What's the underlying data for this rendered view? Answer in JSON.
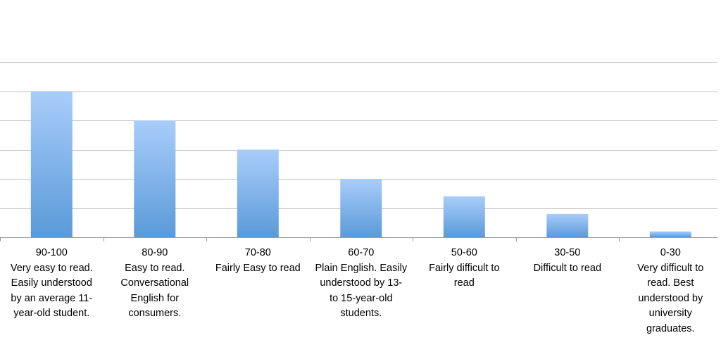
{
  "chart_data": {
    "type": "bar",
    "title": "",
    "xlabel": "",
    "ylabel": "",
    "ylim": [
      0,
      12
    ],
    "gridlines": [
      0,
      2,
      4,
      6,
      8,
      10,
      12
    ],
    "categories": [
      [
        "90-100",
        "Very easy to read.",
        "Easily understood",
        "by an average 11-",
        "year-old student."
      ],
      [
        "80-90",
        "Easy to read.",
        "Conversational",
        "English for",
        "consumers."
      ],
      [
        "70-80",
        "Fairly Easy to read"
      ],
      [
        "60-70",
        "Plain English. Easily",
        "understood by 13-",
        "to 15-year-old",
        "students."
      ],
      [
        "50-60",
        "Fairly difficult to",
        "read"
      ],
      [
        "30-50",
        "Difficult to read"
      ],
      [
        "0-30",
        "Very difficult to",
        "read. Best",
        "understood by",
        "university",
        "graduates."
      ]
    ],
    "values": [
      10,
      8,
      6,
      4,
      2.8,
      1.6,
      0.4
    ],
    "colors": {
      "bar_top": "#a9cdfa",
      "bar_bottom": "#5a9ad8",
      "gridline": "#c0c0c0",
      "axis": "#9a9a9a"
    }
  }
}
